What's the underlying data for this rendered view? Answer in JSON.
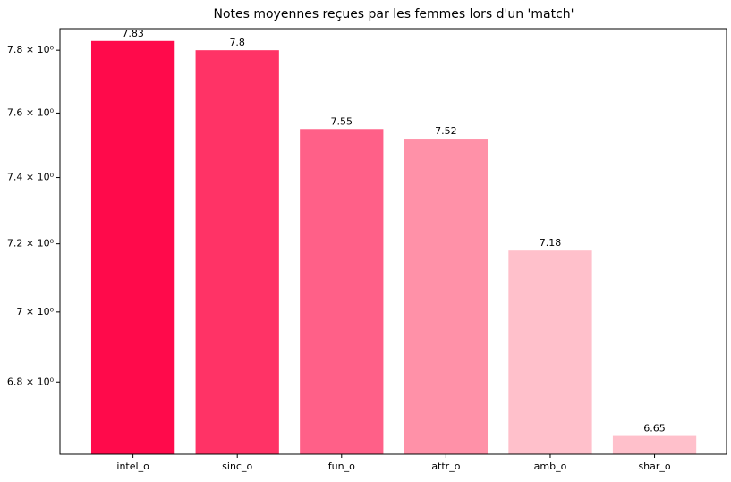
{
  "chart_data": {
    "type": "bar",
    "title": "Notes moyennes reçues par les femmes lors d'un 'match'",
    "categories": [
      "intel_o",
      "sinc_o",
      "fun_o",
      "attr_o",
      "amb_o",
      "shar_o"
    ],
    "values": [
      7.83,
      7.8,
      7.55,
      7.52,
      7.18,
      6.65
    ],
    "colors": [
      "#ff0a4b",
      "#ff3366",
      "#ff6088",
      "#ff91a8",
      "#ffc0cb",
      "#ffc0cb"
    ],
    "ylim": [
      6.6,
      7.87
    ],
    "log_scale": true,
    "grid": false,
    "yticks": [
      {
        "value": 6.8,
        "label": "6.8 × 10⁰"
      },
      {
        "value": 7,
        "label": "7 × 10⁰"
      },
      {
        "value": 7.2,
        "label": "7.2 × 10⁰"
      },
      {
        "value": 7.4,
        "label": "7.4 × 10⁰"
      },
      {
        "value": 7.6,
        "label": "7.6 × 10⁰"
      },
      {
        "value": 7.8,
        "label": "7.8 × 10⁰"
      }
    ]
  }
}
